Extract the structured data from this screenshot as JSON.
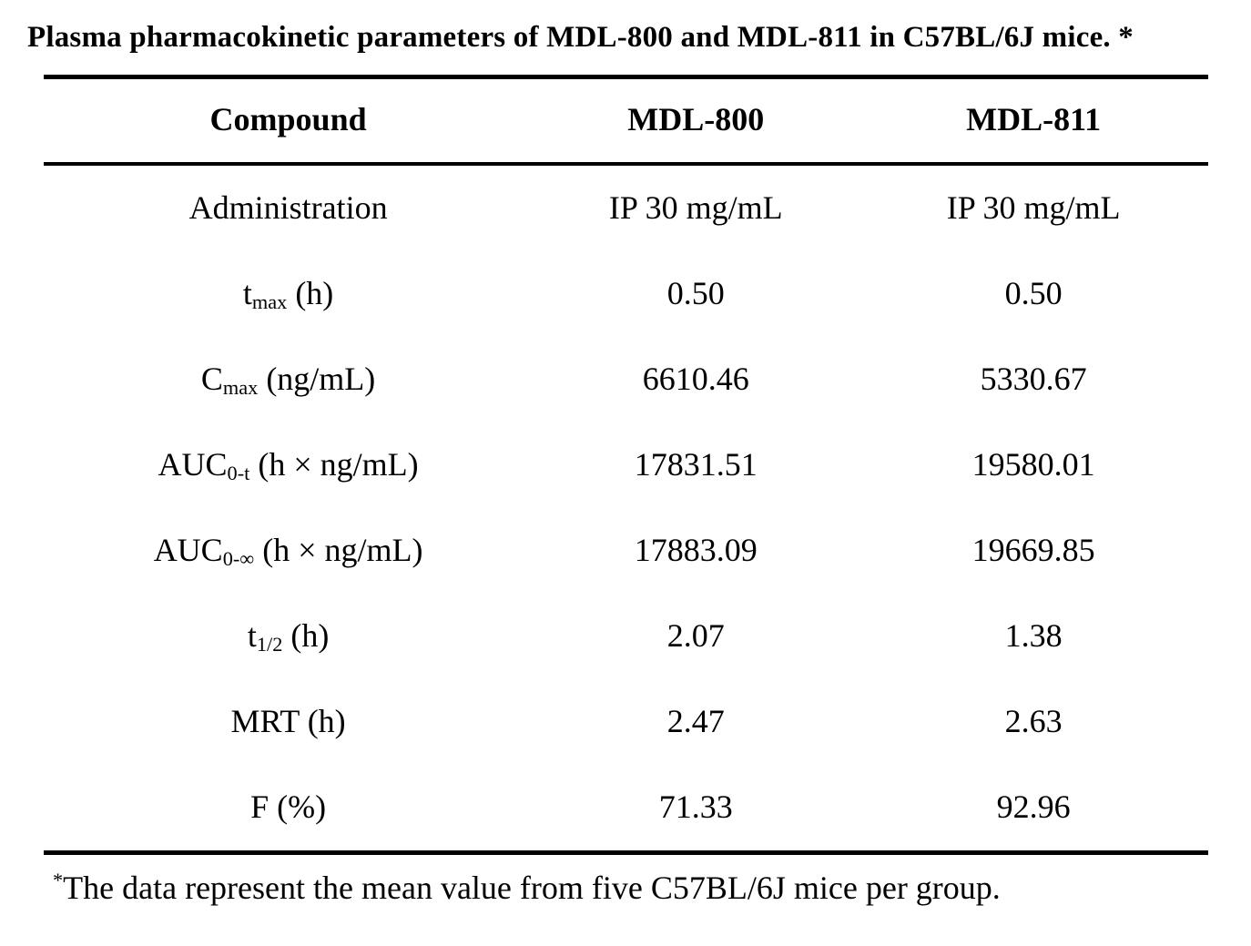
{
  "title": "Plasma pharmacokinetic parameters of MDL-800 and MDL-811 in  C57BL/6J mice. *",
  "table": {
    "headers": [
      "Compound",
      "MDL-800",
      "MDL-811"
    ],
    "rows": [
      {
        "label": {
          "base": "Administration",
          "sub": "",
          "suffix": ""
        },
        "mdl800": "IP 30 mg/mL",
        "mdl811": "IP 30 mg/mL"
      },
      {
        "label": {
          "base": "t",
          "sub": "max",
          "suffix": " (h)"
        },
        "mdl800": "0.50",
        "mdl811": "0.50"
      },
      {
        "label": {
          "base": "C",
          "sub": "max",
          "suffix": " (ng/mL)"
        },
        "mdl800": "6610.46",
        "mdl811": "5330.67"
      },
      {
        "label": {
          "base": "AUC",
          "sub": "0-t",
          "suffix": " (h × ng/mL)"
        },
        "mdl800": "17831.51",
        "mdl811": "19580.01"
      },
      {
        "label": {
          "base": "AUC",
          "sub": "0-∞",
          "suffix": " (h × ng/mL)"
        },
        "mdl800": "17883.09",
        "mdl811": "19669.85"
      },
      {
        "label": {
          "base": "t",
          "sub": "1/2",
          "suffix": " (h)"
        },
        "mdl800": "2.07",
        "mdl811": "1.38"
      },
      {
        "label": {
          "base": "MRT",
          "sub": "",
          "suffix": " (h)"
        },
        "mdl800": "2.47",
        "mdl811": "2.63"
      },
      {
        "label": {
          "base": "F",
          "sub": "",
          "suffix": " (%)"
        },
        "mdl800": "71.33",
        "mdl811": "92.96"
      }
    ]
  },
  "footnote": {
    "marker": "*",
    "text": "The data represent the mean value from five C57BL/6J mice per group."
  },
  "colors": {
    "text": "#000000",
    "background": "#ffffff",
    "rule": "#000000"
  },
  "chart_data": {
    "type": "table",
    "title": "Plasma pharmacokinetic parameters of MDL-800 and MDL-811 in C57BL/6J mice. *",
    "columns": [
      "Compound",
      "MDL-800",
      "MDL-811"
    ],
    "rows": [
      [
        "Administration",
        "IP 30 mg/mL",
        "IP 30 mg/mL"
      ],
      [
        "tmax (h)",
        "0.50",
        "0.50"
      ],
      [
        "Cmax (ng/mL)",
        "6610.46",
        "5330.67"
      ],
      [
        "AUC0-t (h × ng/mL)",
        "17831.51",
        "19580.01"
      ],
      [
        "AUC0-∞ (h × ng/mL)",
        "17883.09",
        "19669.85"
      ],
      [
        "t1/2 (h)",
        "2.07",
        "1.38"
      ],
      [
        "MRT (h)",
        "2.47",
        "2.63"
      ],
      [
        "F (%)",
        "71.33",
        "92.96"
      ]
    ],
    "footnote": "*The data represent the mean value from five C57BL/6J mice per group."
  }
}
